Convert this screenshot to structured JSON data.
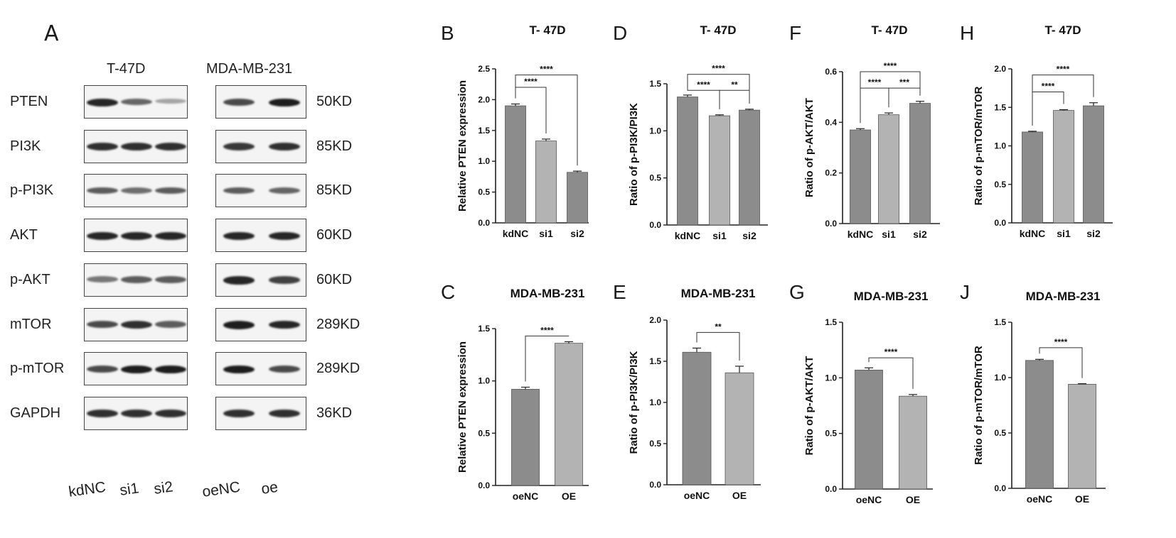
{
  "colors": {
    "dark_bar": "#8c8c8c",
    "light_bar": "#b3b3b3",
    "axis": "#222222"
  },
  "panel_a": {
    "letter": "A",
    "cell_lines": [
      "T-47D",
      "MDA-MB-231"
    ],
    "lanes_left": [
      "kdNC",
      "si1",
      "si2"
    ],
    "lanes_right": [
      "oeNC",
      "oe"
    ],
    "rows": [
      {
        "protein": "PTEN",
        "kd": "50KD",
        "left_intensity": [
          0.9,
          0.55,
          0.2
        ],
        "right_intensity": [
          0.7,
          0.95
        ]
      },
      {
        "protein": "PI3K",
        "kd": "85KD",
        "left_intensity": [
          0.85,
          0.85,
          0.85
        ],
        "right_intensity": [
          0.8,
          0.85
        ]
      },
      {
        "protein": "p-PI3K",
        "kd": "85KD",
        "left_intensity": [
          0.6,
          0.5,
          0.6
        ],
        "right_intensity": [
          0.6,
          0.55
        ]
      },
      {
        "protein": "AKT",
        "kd": "60KD",
        "left_intensity": [
          0.9,
          0.9,
          0.9
        ],
        "right_intensity": [
          0.9,
          0.9
        ]
      },
      {
        "protein": "p-AKT",
        "kd": "60KD",
        "left_intensity": [
          0.45,
          0.6,
          0.6
        ],
        "right_intensity": [
          0.9,
          0.75
        ]
      },
      {
        "protein": "mTOR",
        "kd": "289KD",
        "left_intensity": [
          0.7,
          0.85,
          0.6
        ],
        "right_intensity": [
          0.95,
          0.9
        ]
      },
      {
        "protein": "p-mTOR",
        "kd": "289KD",
        "left_intensity": [
          0.7,
          0.95,
          0.95
        ],
        "right_intensity": [
          0.95,
          0.7
        ]
      },
      {
        "protein": "GAPDH",
        "kd": "36KD",
        "left_intensity": [
          0.85,
          0.85,
          0.85
        ],
        "right_intensity": [
          0.85,
          0.85
        ]
      }
    ]
  },
  "chart_data": [
    {
      "letter": "B",
      "type": "bar",
      "title": "T- 47D",
      "ylabel": "Relative PTEN expression",
      "categories": [
        "kdNC",
        "si1",
        "si2"
      ],
      "values": [
        1.9,
        1.33,
        0.82
      ],
      "errors": [
        0.03,
        0.03,
        0.02
      ],
      "bar_tones": [
        "dark",
        "light",
        "dark"
      ],
      "ylim": [
        0,
        2.5
      ],
      "yticks": [
        "0.0",
        "0.5",
        "1.0",
        "1.5",
        "2.0",
        "2.5"
      ],
      "sig": [
        {
          "from": 0,
          "to": 1,
          "label": "****",
          "y": 2.2
        },
        {
          "from": 0,
          "to": 2,
          "label": "****",
          "y": 2.4
        }
      ]
    },
    {
      "letter": "C",
      "type": "bar",
      "title": "MDA-MB-231",
      "ylabel": "Relative PTEN expression",
      "categories": [
        "oeNC",
        "OE"
      ],
      "values": [
        0.92,
        1.36
      ],
      "errors": [
        0.02,
        0.015
      ],
      "bar_tones": [
        "dark",
        "light"
      ],
      "ylim": [
        0,
        1.5
      ],
      "yticks": [
        "0.0",
        "0.5",
        "1.0",
        "1.5"
      ],
      "sig": [
        {
          "from": 0,
          "to": 1,
          "label": "****",
          "y": 1.43
        }
      ]
    },
    {
      "letter": "D",
      "type": "bar",
      "title": "T- 47D",
      "ylabel": "Ratio of p-PI3K/PI3K",
      "categories": [
        "kdNC",
        "si1",
        "si2"
      ],
      "values": [
        1.36,
        1.16,
        1.22
      ],
      "errors": [
        0.02,
        0.01,
        0.01
      ],
      "bar_tones": [
        "dark",
        "light",
        "dark"
      ],
      "ylim": [
        0,
        1.5
      ],
      "yticks": [
        "0.0",
        "0.5",
        "1.0",
        "1.5"
      ],
      "sig": [
        {
          "from": 0,
          "to": 1,
          "label": "****",
          "y": 1.43
        },
        {
          "from": 1,
          "to": 2,
          "label": "**",
          "y": 1.43
        },
        {
          "from": 0,
          "to": 2,
          "label": "****",
          "y": 1.6
        }
      ]
    },
    {
      "letter": "E",
      "type": "bar",
      "title": "MDA-MB-231",
      "ylabel": "Ratio of p-PI3K/PI3K",
      "categories": [
        "oeNC",
        "OE"
      ],
      "values": [
        1.61,
        1.36
      ],
      "errors": [
        0.05,
        0.08
      ],
      "bar_tones": [
        "dark",
        "light"
      ],
      "ylim": [
        0,
        2.0
      ],
      "yticks": [
        "0.0",
        "0.5",
        "1.0",
        "1.5",
        "2.0"
      ],
      "sig": [
        {
          "from": 0,
          "to": 1,
          "label": "**",
          "y": 1.85
        }
      ]
    },
    {
      "letter": "F",
      "type": "bar",
      "title": "T- 47D",
      "ylabel": "Ratio of p-AKT/AKT",
      "categories": [
        "kdNC",
        "si1",
        "si2"
      ],
      "values": [
        0.37,
        0.43,
        0.475
      ],
      "errors": [
        0.005,
        0.007,
        0.008
      ],
      "bar_tones": [
        "dark",
        "light",
        "dark"
      ],
      "ylim": [
        0,
        0.6
      ],
      "yticks": [
        "0.0",
        "0.2",
        "0.4",
        "0.6"
      ],
      "sig": [
        {
          "from": 0,
          "to": 1,
          "label": "****",
          "y": 0.535
        },
        {
          "from": 1,
          "to": 2,
          "label": "***",
          "y": 0.535
        },
        {
          "from": 0,
          "to": 2,
          "label": "****",
          "y": 0.6
        }
      ]
    },
    {
      "letter": "G",
      "type": "bar",
      "title": "MDA-MB-231",
      "ylabel": "Ratio of p-AKT/AKT",
      "categories": [
        "oeNC",
        "OE"
      ],
      "values": [
        1.07,
        0.835
      ],
      "errors": [
        0.02,
        0.015
      ],
      "bar_tones": [
        "dark",
        "light"
      ],
      "ylim": [
        0,
        1.5
      ],
      "yticks": [
        "0.0",
        "0.5",
        "1.0",
        "1.5"
      ],
      "sig": [
        {
          "from": 0,
          "to": 1,
          "label": "****",
          "y": 1.18
        }
      ]
    },
    {
      "letter": "H",
      "type": "bar",
      "title": "T- 47D",
      "ylabel": "Ratio of p-mTOR/mTOR",
      "categories": [
        "kdNC",
        "si1",
        "si2"
      ],
      "values": [
        1.18,
        1.46,
        1.52
      ],
      "errors": [
        0.01,
        0.01,
        0.04
      ],
      "bar_tones": [
        "dark",
        "light",
        "dark"
      ],
      "ylim": [
        0,
        2.0
      ],
      "yticks": [
        "0.0",
        "0.5",
        "1.0",
        "1.5",
        "2.0"
      ],
      "sig": [
        {
          "from": 0,
          "to": 1,
          "label": "****",
          "y": 1.7
        },
        {
          "from": 0,
          "to": 2,
          "label": "****",
          "y": 1.92
        }
      ]
    },
    {
      "letter": "J",
      "type": "bar",
      "title": "MDA-MB-231",
      "ylabel": "Ratio of p-mTOR/mTOR",
      "categories": [
        "oeNC",
        "OE"
      ],
      "values": [
        1.155,
        0.94
      ],
      "errors": [
        0.01,
        0.005
      ],
      "bar_tones": [
        "dark",
        "light"
      ],
      "ylim": [
        0,
        1.5
      ],
      "yticks": [
        "0.0",
        "0.5",
        "1.0",
        "1.5"
      ],
      "sig": [
        {
          "from": 0,
          "to": 1,
          "label": "****",
          "y": 1.27
        }
      ]
    }
  ]
}
